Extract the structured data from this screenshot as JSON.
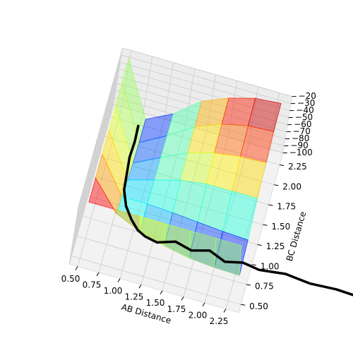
{
  "chart_data": {
    "type": "surface3d",
    "xlabel": "AB Distance",
    "ylabel": "BC Distance",
    "xlim": [
      0.4,
      2.4
    ],
    "ylim": [
      0.4,
      2.4
    ],
    "zlim": [
      -100,
      -20
    ],
    "xticks": [
      {
        "value": 0.5,
        "label": "0.50"
      },
      {
        "value": 0.75,
        "label": "0.75"
      },
      {
        "value": 1.0,
        "label": "1.00"
      },
      {
        "value": 1.25,
        "label": "1.25"
      },
      {
        "value": 1.5,
        "label": "1.50"
      },
      {
        "value": 1.75,
        "label": "1.75"
      },
      {
        "value": 2.0,
        "label": "2.00"
      },
      {
        "value": 2.25,
        "label": "2.25"
      }
    ],
    "yticks": [
      {
        "value": 0.5,
        "label": "0.50"
      },
      {
        "value": 0.75,
        "label": "0.75"
      },
      {
        "value": 1.0,
        "label": "1.00"
      },
      {
        "value": 1.25,
        "label": "1.25"
      },
      {
        "value": 1.5,
        "label": "1.50"
      },
      {
        "value": 1.75,
        "label": "1.75"
      },
      {
        "value": 2.0,
        "label": "2.00"
      },
      {
        "value": 2.25,
        "label": "2.25"
      }
    ],
    "zticks": [
      {
        "value": -20,
        "label": "−20"
      },
      {
        "value": -30,
        "label": "−30"
      },
      {
        "value": -40,
        "label": "−40"
      },
      {
        "value": -50,
        "label": "−50"
      },
      {
        "value": -60,
        "label": "−60"
      },
      {
        "value": -70,
        "label": "−70"
      },
      {
        "value": -80,
        "label": "−80"
      },
      {
        "value": -90,
        "label": "−90"
      },
      {
        "value": -100,
        "label": "−100"
      }
    ],
    "grid": true,
    "colormap": "jet",
    "surface": {
      "x": [
        0.5,
        0.8,
        1.1,
        1.4,
        1.7,
        2.0,
        2.3
      ],
      "y": [
        0.5,
        0.8,
        1.1,
        1.4,
        1.7,
        2.0,
        2.3
      ],
      "z": [
        [
          -20,
          -20,
          -20,
          -20,
          -20,
          -20,
          -20
        ],
        [
          -20,
          -60,
          -75,
          -85,
          -92,
          -95,
          -96
        ],
        [
          -20,
          -70,
          -70,
          -72,
          -75,
          -78,
          -80
        ],
        [
          -20,
          -80,
          -70,
          -60,
          -55,
          -55,
          -55
        ],
        [
          -20,
          -90,
          -72,
          -55,
          -45,
          -40,
          -38
        ],
        [
          -20,
          -95,
          -75,
          -52,
          -38,
          -30,
          -28
        ],
        [
          -20,
          -96,
          -78,
          -50,
          -35,
          -25,
          -22
        ]
      ]
    },
    "trajectory": {
      "color": "#000000",
      "x": [
        0.74,
        0.75,
        0.74,
        0.76,
        0.78,
        0.85,
        0.95,
        1.05,
        1.15,
        1.3,
        1.5,
        1.7,
        1.9,
        2.1,
        2.3,
        2.5,
        2.8,
        3.1,
        3.4,
        3.6
      ],
      "y": [
        2.19,
        2.0,
        1.8,
        1.6,
        1.4,
        1.22,
        1.08,
        0.98,
        0.93,
        0.9,
        0.97,
        0.92,
        0.98,
        0.9,
        0.95,
        0.92,
        0.96,
        0.93,
        0.95,
        0.94
      ],
      "z": [
        -95,
        -95,
        -95,
        -95,
        -95,
        -95,
        -95,
        -95,
        -95,
        -95,
        -95,
        -95,
        -95,
        -95,
        -95,
        -95,
        -95,
        -95,
        -95,
        -95
      ]
    }
  }
}
